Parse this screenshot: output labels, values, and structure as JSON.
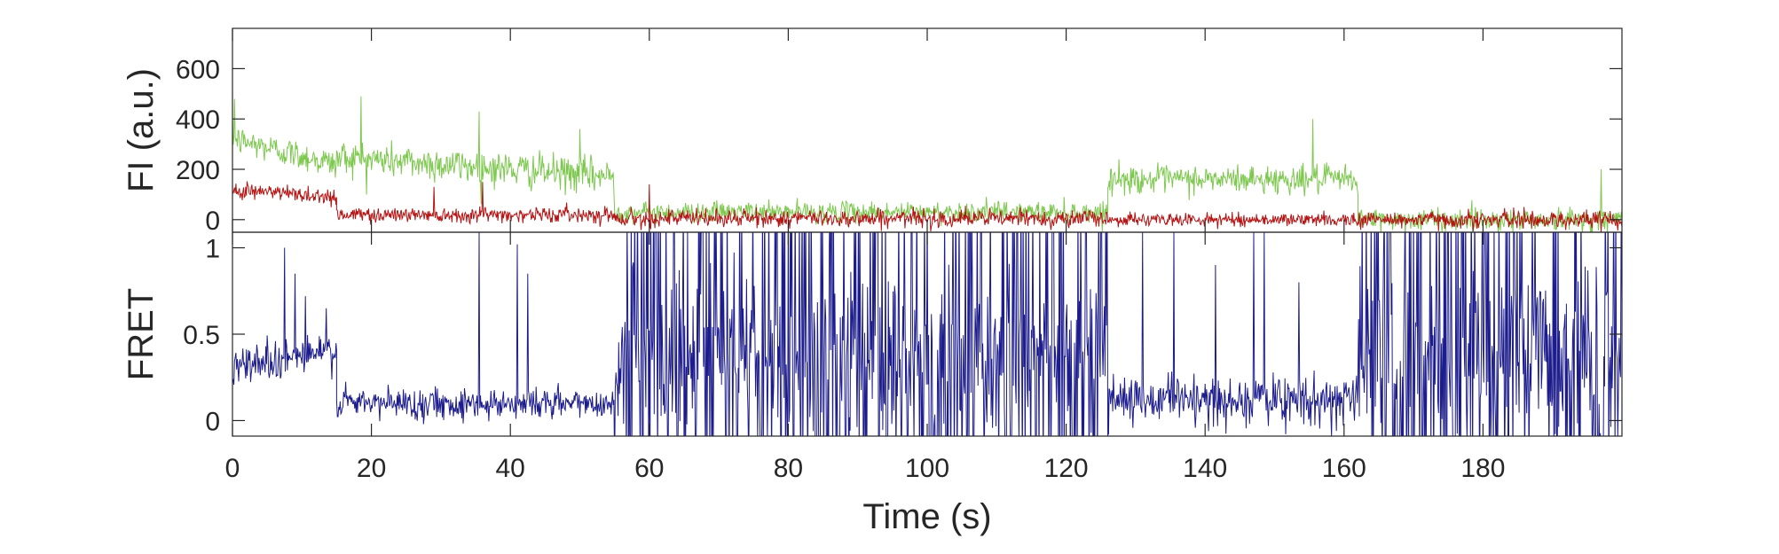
{
  "chart_data": [
    {
      "type": "line",
      "panel": "top",
      "title": "",
      "xlabel": "",
      "ylabel": "FI (a.u.)",
      "xlim": [
        0,
        200
      ],
      "ylim": [
        -50,
        760
      ],
      "xticks": [
        0,
        20,
        40,
        60,
        80,
        100,
        120,
        140,
        160,
        180
      ],
      "xtick_labels_visible": false,
      "yticks": [
        0,
        200,
        400,
        600
      ],
      "ytick_labels": [
        "0",
        "200",
        "400",
        "600"
      ],
      "grid": false,
      "legend": "none",
      "series": [
        {
          "color": "#7ec850",
          "segments": [
            {
              "x0": 0,
              "x1": 15,
              "y0": 320,
              "y1": 220,
              "noise": 60
            },
            {
              "x0": 15,
              "x1": 55,
              "y0": 250,
              "y1": 170,
              "noise": 70
            },
            {
              "x0": 55,
              "x1": 126,
              "y0": 30,
              "y1": 30,
              "noise": 40
            },
            {
              "x0": 126,
              "x1": 162,
              "y0": 160,
              "y1": 160,
              "noise": 55
            },
            {
              "x0": 162,
              "x1": 200,
              "y0": 0,
              "y1": 0,
              "noise": 45
            }
          ],
          "spikes": [
            [
              0.3,
              480
            ],
            [
              18.5,
              490
            ],
            [
              35.5,
              430
            ],
            [
              50,
              360
            ],
            [
              155.5,
              400
            ],
            [
              197,
              200
            ]
          ]
        },
        {
          "color": "#b41414",
          "segments": [
            {
              "x0": 0,
              "x1": 15,
              "y0": 120,
              "y1": 90,
              "noise": 35
            },
            {
              "x0": 15,
              "x1": 55,
              "y0": 20,
              "y1": 20,
              "noise": 30
            },
            {
              "x0": 55,
              "x1": 126,
              "y0": 5,
              "y1": 5,
              "noise": 35
            },
            {
              "x0": 126,
              "x1": 162,
              "y0": 0,
              "y1": 0,
              "noise": 25
            },
            {
              "x0": 162,
              "x1": 200,
              "y0": 0,
              "y1": 0,
              "noise": 35
            }
          ],
          "spikes": [
            [
              36,
              150
            ],
            [
              29,
              130
            ],
            [
              60,
              140
            ]
          ]
        }
      ]
    },
    {
      "type": "line",
      "panel": "bottom",
      "title": "",
      "xlabel": "Time (s)",
      "ylabel": "FRET",
      "xlim": [
        0,
        200
      ],
      "ylim": [
        -0.09,
        1.09
      ],
      "xticks": [
        0,
        20,
        40,
        60,
        80,
        100,
        120,
        140,
        160,
        180
      ],
      "xtick_labels": [
        "0",
        "20",
        "40",
        "60",
        "80",
        "100",
        "120",
        "140",
        "160",
        "180"
      ],
      "yticks": [
        0,
        0.5,
        1
      ],
      "ytick_labels": [
        "0",
        "0.5",
        "1"
      ],
      "grid": false,
      "legend": "none",
      "series": [
        {
          "color": "#1c1c8c",
          "segments": [
            {
              "x0": 0,
              "x1": 15,
              "y0": 0.32,
              "y1": 0.4,
              "noise": 0.12,
              "mode": "gauss"
            },
            {
              "x0": 15,
              "x1": 55,
              "y0": 0.1,
              "y1": 0.1,
              "noise": 0.09,
              "mode": "gauss"
            },
            {
              "x0": 55,
              "x1": 126,
              "y0": 0.35,
              "y1": 0.35,
              "noise": 0.45,
              "mode": "burst"
            },
            {
              "x0": 126,
              "x1": 162,
              "y0": 0.12,
              "y1": 0.12,
              "noise": 0.14,
              "mode": "gauss"
            },
            {
              "x0": 162,
              "x1": 200,
              "y0": 0.35,
              "y1": 0.35,
              "noise": 0.45,
              "mode": "burst"
            }
          ],
          "spikes": [
            [
              7.5,
              1.0
            ],
            [
              35.5,
              1.09
            ],
            [
              41,
              1.02
            ],
            [
              42.5,
              0.85
            ],
            [
              9,
              0.85
            ],
            [
              10.5,
              0.72
            ],
            [
              13.5,
              0.65
            ],
            [
              148.5,
              1.09
            ],
            [
              147,
              1.09
            ],
            [
              135.5,
              1.09
            ],
            [
              141.5,
              0.9
            ],
            [
              153.5,
              0.8
            ],
            [
              131,
              1.09
            ]
          ]
        }
      ]
    }
  ]
}
